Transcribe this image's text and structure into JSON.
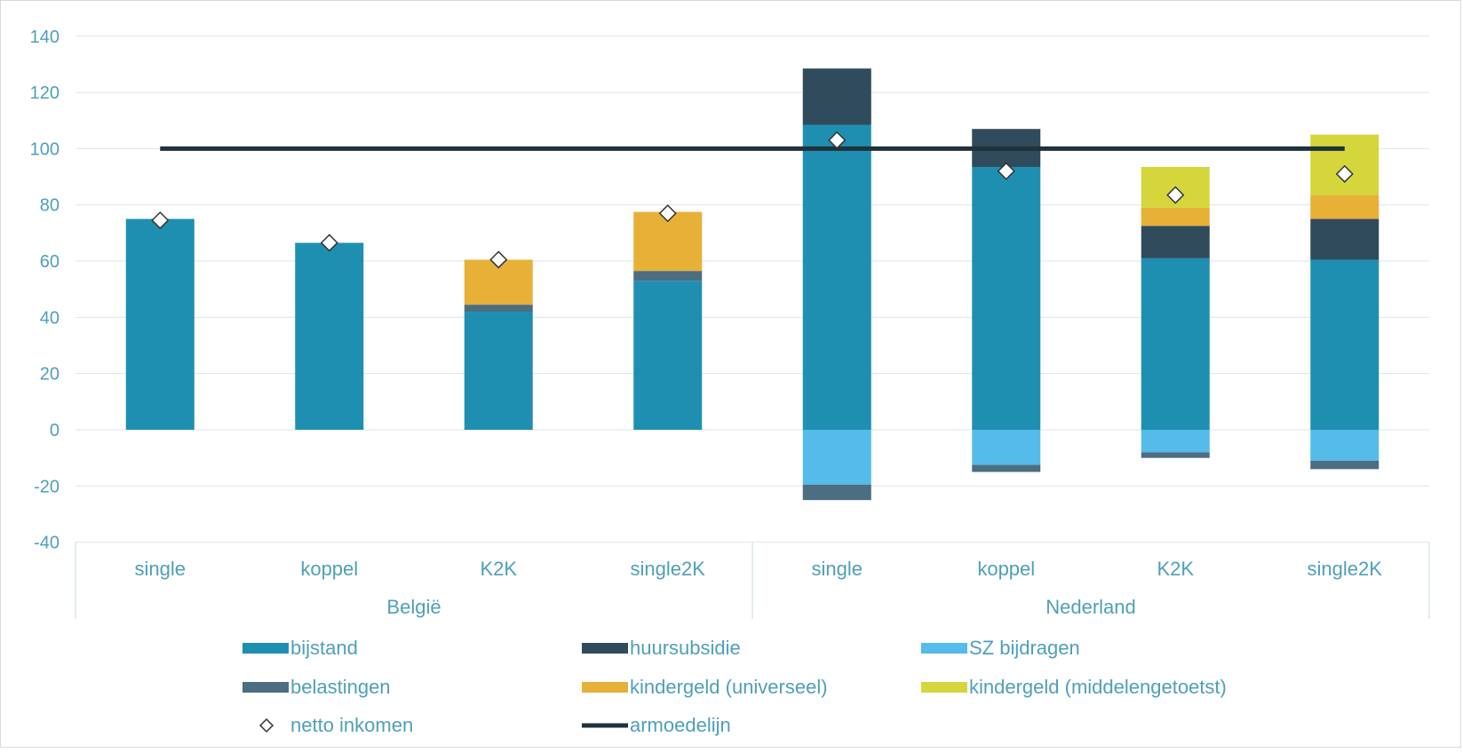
{
  "chart_data": {
    "type": "bar",
    "stacked": true,
    "title": "",
    "xlabel": "",
    "ylabel": "",
    "ylim": [
      -40,
      140
    ],
    "yticks": [
      -40,
      -20,
      0,
      20,
      40,
      60,
      80,
      100,
      120,
      140
    ],
    "grid": true,
    "legend_position": "bottom",
    "groups": [
      {
        "label": "België",
        "categories": [
          "single",
          "koppel",
          "K2K",
          "single2K"
        ]
      },
      {
        "label": "Nederland",
        "categories": [
          "single",
          "koppel",
          "K2K",
          "single2K"
        ]
      }
    ],
    "categories": [
      "single",
      "koppel",
      "K2K",
      "single2K",
      "single",
      "koppel",
      "K2K",
      "single2K"
    ],
    "series": [
      {
        "name": "bijstand",
        "color": "#1f8fb1",
        "values": [
          75,
          66.5,
          42,
          53,
          108.5,
          93.5,
          61,
          60.5
        ]
      },
      {
        "name": "huursubsidie",
        "color": "#2f4b5c",
        "values": [
          0,
          0,
          0,
          0,
          20,
          13.5,
          11.5,
          14.5
        ]
      },
      {
        "name": "SZ bijdragen",
        "color": "#55bbea",
        "values": [
          0,
          0,
          0,
          0,
          -19.5,
          -12.5,
          -8,
          -11
        ]
      },
      {
        "name": "belastingen",
        "color": "#4c6d82",
        "values": [
          0,
          0,
          2.5,
          3.5,
          -5.5,
          -2.5,
          -2,
          -3
        ]
      },
      {
        "name": "kindergeld (universeel)",
        "color": "#e7b037",
        "values": [
          0,
          0,
          16,
          21,
          0,
          0,
          6.5,
          8.5
        ]
      },
      {
        "name": "kindergeld (middelengetoetst)",
        "color": "#d4d63c",
        "values": [
          0,
          0,
          0,
          0,
          0,
          0,
          14.5,
          21.5
        ]
      }
    ],
    "markers": {
      "name": "netto inkomen",
      "values": [
        74.5,
        66.5,
        60.5,
        77,
        103,
        92,
        83.5,
        91
      ]
    },
    "line": {
      "name": "armoedelijn",
      "color": "#1f313c",
      "value": 100
    }
  }
}
